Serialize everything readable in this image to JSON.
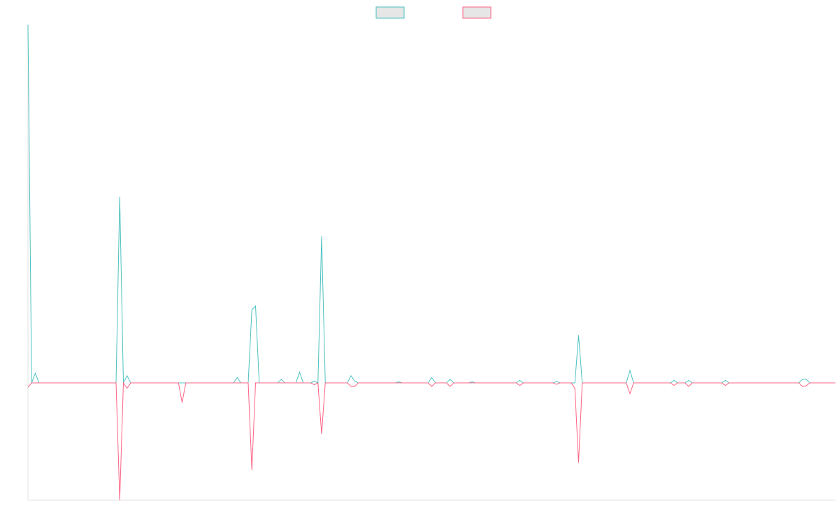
{
  "chart_data": {
    "type": "line",
    "legend": "top",
    "ylim": [
      -32.8,
      100
    ],
    "series": [
      {
        "color": "#4bc0c0",
        "values": [
          100,
          0,
          2.7,
          0,
          0,
          0,
          0,
          0,
          0,
          0,
          0,
          0,
          0,
          0,
          0,
          0,
          0,
          0,
          0,
          0,
          0,
          0,
          0,
          0,
          0,
          52,
          0,
          2,
          0,
          0,
          0,
          0,
          0,
          0,
          0,
          0,
          0,
          0,
          0,
          0,
          0,
          0,
          0,
          0,
          0,
          0,
          0,
          0,
          0,
          0,
          0,
          0,
          0,
          0,
          0,
          0,
          0,
          1.5,
          0,
          0,
          0,
          20.5,
          21.5,
          0,
          0,
          0,
          0,
          0,
          0,
          1,
          0,
          0,
          0,
          0,
          3,
          0,
          0,
          0,
          0.5,
          0,
          41,
          0,
          0,
          0,
          0,
          0,
          0,
          0,
          2,
          0.5,
          0,
          0,
          0,
          0,
          0,
          0,
          0,
          0,
          0,
          0,
          0,
          0.3,
          0,
          0,
          0,
          0,
          0,
          0,
          0,
          0,
          1.5,
          0,
          0,
          0,
          0,
          1,
          0,
          0,
          0,
          0,
          0,
          0.3,
          0,
          0,
          0,
          0,
          0,
          0,
          0,
          0,
          0,
          0,
          0,
          0,
          0.7,
          0,
          0,
          0,
          0,
          0,
          0,
          0,
          0,
          0,
          0.4,
          0,
          0,
          0,
          0,
          0,
          13.3,
          0,
          0,
          0,
          0,
          0,
          0,
          0,
          0,
          0,
          0,
          0,
          0,
          0,
          3.5,
          0,
          0,
          0,
          0,
          0,
          0,
          0,
          0,
          0,
          0,
          0,
          0.7,
          0,
          0,
          0,
          0.7,
          0,
          0,
          0,
          0,
          0,
          0,
          0,
          0,
          0,
          0.7,
          0,
          0,
          0,
          0,
          0,
          0,
          0,
          0,
          0,
          0,
          0,
          0,
          0,
          0,
          0,
          0,
          0,
          0,
          0,
          0,
          1,
          1,
          0,
          0,
          0,
          0,
          0,
          0,
          0,
          0
        ]
      },
      {
        "color": "#ff6384",
        "values": [
          -1.2,
          0,
          0,
          0,
          0,
          0,
          0,
          0,
          0,
          0,
          0,
          0,
          0,
          0,
          0,
          0,
          0,
          0,
          0,
          0,
          0,
          0,
          0,
          0,
          0,
          -32.8,
          0,
          -1.5,
          0,
          0,
          0,
          0,
          0,
          0,
          0,
          0,
          0,
          0,
          0,
          0,
          0,
          0,
          -5.5,
          0,
          0,
          0,
          0,
          0,
          0,
          0,
          0,
          0,
          0,
          0,
          0,
          0,
          0,
          0,
          0,
          0,
          0,
          -24.4,
          0,
          0,
          0,
          0,
          0,
          0,
          0,
          0,
          0,
          0,
          0,
          0,
          0,
          0,
          0,
          0,
          -0.5,
          0,
          -14.3,
          0,
          0,
          0,
          0,
          0,
          0,
          0,
          -1,
          -1,
          0,
          0,
          0,
          0,
          0,
          0,
          0,
          0,
          0,
          0,
          0,
          0,
          0,
          0,
          0,
          0,
          0,
          0,
          0,
          0,
          -1,
          0,
          0,
          0,
          0,
          -1,
          0,
          0,
          0,
          0,
          0,
          0,
          0,
          0,
          0,
          0,
          0,
          0,
          0,
          0,
          0,
          0,
          0,
          0,
          -0.7,
          0,
          0,
          0,
          0,
          0,
          0,
          0,
          0,
          0,
          -0.4,
          0,
          0,
          0,
          0,
          -1.5,
          -22.3,
          0,
          0,
          0,
          0,
          0,
          0,
          0,
          0,
          0,
          0,
          0,
          0,
          0,
          -3,
          0,
          0,
          0,
          0,
          0,
          0,
          0,
          0,
          0,
          0,
          0,
          -0.7,
          0,
          0,
          0,
          -1,
          0,
          0,
          0,
          0,
          0,
          0,
          0,
          0,
          0,
          -0.7,
          0,
          0,
          0,
          0,
          0,
          0,
          0,
          0,
          0,
          0,
          0,
          0,
          0,
          0,
          0,
          0,
          0,
          0,
          0,
          0,
          -1,
          -0.8,
          0,
          0,
          0,
          0,
          0,
          0,
          0,
          0
        ]
      }
    ]
  }
}
